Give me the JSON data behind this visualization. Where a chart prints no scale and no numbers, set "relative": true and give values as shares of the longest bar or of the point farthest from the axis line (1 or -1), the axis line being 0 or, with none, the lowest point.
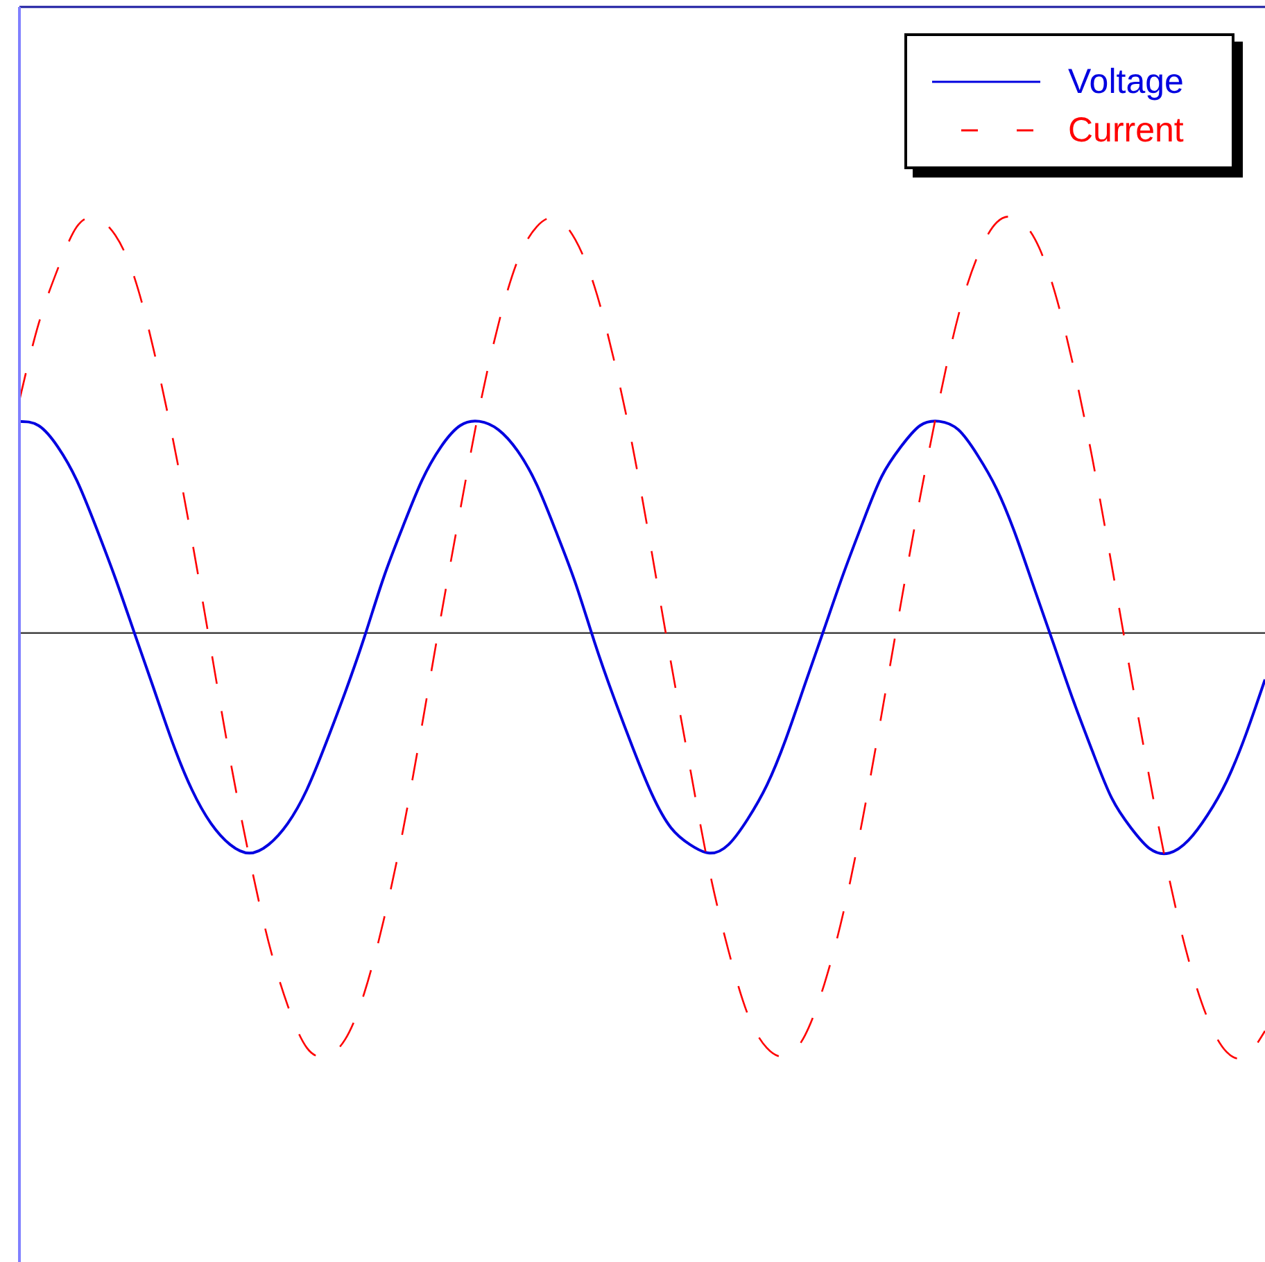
{
  "chart_data": {
    "type": "line",
    "relative": true,
    "legend": "top right",
    "marker": "none",
    "tick_labels": false,
    "categories": [
      null,
      null,
      null,
      null,
      null,
      null,
      null,
      null,
      null,
      null,
      null,
      null,
      null,
      null,
      null,
      null,
      null,
      null,
      null,
      null,
      null,
      null,
      null,
      null,
      null,
      null,
      null,
      null,
      null,
      null,
      null,
      null,
      null,
      null,
      null,
      null,
      null,
      null,
      null,
      null,
      null,
      null,
      null,
      null,
      null,
      null,
      null,
      null,
      null,
      null,
      null,
      null,
      null,
      null,
      null,
      null,
      null,
      null,
      null,
      null,
      null,
      null,
      null,
      null,
      null,
      null
    ],
    "series": [
      {
        "name": "Voltage",
        "color": "#0000e0",
        "line_style": "solid",
        "values": [
          0.5,
          0.49,
          0.44,
          0.36,
          0.25,
          0.13,
          0.0,
          -0.13,
          -0.26,
          -0.37,
          -0.45,
          -0.5,
          -0.52,
          -0.5,
          -0.45,
          -0.37,
          -0.26,
          -0.14,
          -0.01,
          0.13,
          0.25,
          0.36,
          0.44,
          0.49,
          0.5,
          0.48,
          0.43,
          0.35,
          0.24,
          0.12,
          -0.02,
          -0.15,
          -0.27,
          -0.38,
          -0.46,
          -0.5,
          -0.52,
          -0.5,
          -0.44,
          -0.36,
          -0.25,
          -0.12,
          0.01,
          0.14,
          0.26,
          0.37,
          0.44,
          0.49,
          0.5,
          0.48,
          0.42,
          0.34,
          0.23,
          0.1,
          -0.03,
          -0.16,
          -0.28,
          -0.39,
          -0.46,
          -0.51,
          -0.52,
          -0.49,
          -0.43,
          -0.35,
          -0.24,
          -0.11
        ]
      },
      {
        "name": "Current",
        "color": "#ff0000",
        "line_style": "dashed",
        "values": [
          0.55,
          0.73,
          0.86,
          0.96,
          0.98,
          0.94,
          0.84,
          0.67,
          0.46,
          0.22,
          -0.04,
          -0.3,
          -0.53,
          -0.73,
          -0.88,
          -0.98,
          -1.0,
          -0.96,
          -0.85,
          -0.68,
          -0.47,
          -0.22,
          0.04,
          0.29,
          0.53,
          0.73,
          0.88,
          0.96,
          0.98,
          0.93,
          0.82,
          0.65,
          0.44,
          0.19,
          -0.07,
          -0.32,
          -0.56,
          -0.75,
          -0.9,
          -0.98,
          -1.0,
          -0.95,
          -0.83,
          -0.66,
          -0.44,
          -0.19,
          0.07,
          0.32,
          0.55,
          0.75,
          0.89,
          0.97,
          0.98,
          0.93,
          0.81,
          0.63,
          0.41,
          0.16,
          -0.1,
          -0.35,
          -0.58,
          -0.77,
          -0.91,
          -0.99,
          -1.0,
          -0.94
        ]
      }
    ]
  }
}
